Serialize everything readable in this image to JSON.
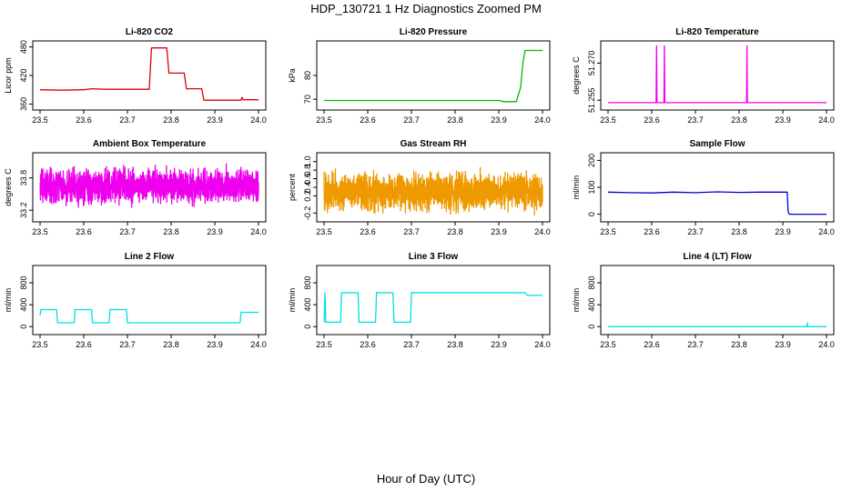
{
  "figure": {
    "title": "HDP_130721  1 Hz Diagnostics Zoomed PM",
    "xlabel": "Hour of Day (UTC)"
  },
  "chart_data": [
    {
      "type": "line",
      "title": "Li-820 CO2",
      "ylabel": "Licor ppm",
      "color": "#dd0000",
      "xlim": [
        23.5,
        24.0
      ],
      "ylim": [
        355,
        485
      ],
      "xticks": [
        23.5,
        23.6,
        23.7,
        23.8,
        23.9,
        24.0
      ],
      "xtick_labels": [
        "23.5",
        "23.6",
        "23.7",
        "23.8",
        "23.9",
        "24.0"
      ],
      "yticks": [
        360,
        420,
        480
      ],
      "ytick_labels": [
        "360",
        "420",
        "480"
      ],
      "series": [
        {
          "x": [
            23.5,
            23.55,
            23.6,
            23.62,
            23.65,
            23.7,
            23.75,
            23.755,
            23.79,
            23.795,
            23.83,
            23.835,
            23.87,
            23.875,
            23.96,
            23.962,
            23.965,
            24.0
          ],
          "y": [
            390,
            389,
            390,
            392,
            391,
            391,
            391,
            478,
            478,
            425,
            425,
            392,
            392,
            368,
            368,
            374,
            369,
            369
          ]
        }
      ]
    },
    {
      "type": "line",
      "title": "Li-820 Pressure",
      "ylabel": "kPa",
      "color": "#00bb00",
      "xlim": [
        23.5,
        24.0
      ],
      "ylim": [
        67,
        93
      ],
      "xticks": [
        23.5,
        23.6,
        23.7,
        23.8,
        23.9,
        24.0
      ],
      "xtick_labels": [
        "23.5",
        "23.6",
        "23.7",
        "23.8",
        "23.9",
        "24.0"
      ],
      "yticks": [
        70,
        80
      ],
      "ytick_labels": [
        "70",
        "80"
      ],
      "series": [
        {
          "x": [
            23.5,
            23.9,
            23.91,
            23.94,
            23.95,
            23.955,
            23.96,
            24.0
          ],
          "y": [
            69.5,
            69.5,
            69.0,
            69.0,
            75,
            85,
            90.5,
            90.5
          ]
        }
      ]
    },
    {
      "type": "line",
      "title": "Li-820 Temperature",
      "ylabel": "degrees C",
      "color": "#ee00ee",
      "xlim": [
        23.5,
        24.0
      ],
      "ylim": [
        51.2525,
        51.2775
      ],
      "xticks": [
        23.5,
        23.6,
        23.7,
        23.8,
        23.9,
        24.0
      ],
      "xtick_labels": [
        "23.5",
        "23.6",
        "23.7",
        "23.8",
        "23.9",
        "24.0"
      ],
      "yticks": [
        51.255,
        51.27
      ],
      "ytick_labels": [
        "51.255",
        "51.270"
      ],
      "series": [
        {
          "x": [
            23.5,
            23.61,
            23.611,
            23.612,
            23.628,
            23.629,
            23.63,
            23.817,
            23.818,
            23.819,
            24.0
          ],
          "y": [
            51.254,
            51.254,
            51.277,
            51.254,
            51.254,
            51.277,
            51.254,
            51.254,
            51.277,
            51.254,
            51.254
          ]
        }
      ]
    },
    {
      "type": "line",
      "title": "Ambient Box Temperature",
      "ylabel": "degrees C",
      "color": "#ee00ee",
      "xlim": [
        23.5,
        24.0
      ],
      "ylim": [
        33.05,
        34.2
      ],
      "xticks": [
        23.5,
        23.6,
        23.7,
        23.8,
        23.9,
        24.0
      ],
      "xtick_labels": [
        "23.5",
        "23.6",
        "23.7",
        "23.8",
        "23.9",
        "24.0"
      ],
      "yticks": [
        33.2,
        33.8
      ],
      "ytick_labels": [
        "33.2",
        "33.8"
      ],
      "noise": {
        "mean": 33.65,
        "min": 33.15,
        "max": 34.15,
        "count": 1800
      }
    },
    {
      "type": "line",
      "title": "Gas Stream RH",
      "ylabel": "percent",
      "color": "#ee9900",
      "xlim": [
        23.5,
        24.0
      ],
      "ylim": [
        -0.32,
        1.12
      ],
      "xticks": [
        23.5,
        23.6,
        23.7,
        23.8,
        23.9,
        24.0
      ],
      "xtick_labels": [
        "23.5",
        "23.6",
        "23.7",
        "23.8",
        "23.9",
        "24.0"
      ],
      "yticks": [
        -0.2,
        0.2,
        0.4,
        0.6,
        0.8,
        1.0
      ],
      "ytick_labels": [
        "-0.2",
        "0.2",
        "0.4",
        "0.6",
        "0.8",
        "1.0"
      ],
      "noise": {
        "mean": 0.3,
        "min": -0.28,
        "max": 1.08,
        "count": 1800
      }
    },
    {
      "type": "line",
      "title": "Sample Flow",
      "ylabel": "ml/min",
      "color": "#0000cc",
      "xlim": [
        23.5,
        24.0
      ],
      "ylim": [
        -15,
        215
      ],
      "xticks": [
        23.5,
        23.6,
        23.7,
        23.8,
        23.9,
        24.0
      ],
      "xtick_labels": [
        "23.5",
        "23.6",
        "23.7",
        "23.8",
        "23.9",
        "24.0"
      ],
      "yticks": [
        0,
        100,
        200
      ],
      "ytick_labels": [
        "0",
        "100",
        "200"
      ],
      "series": [
        {
          "x": [
            23.5,
            23.55,
            23.6,
            23.65,
            23.7,
            23.75,
            23.8,
            23.85,
            23.91,
            23.912,
            23.915,
            24.0
          ],
          "y": [
            82,
            80,
            79,
            82,
            80,
            83,
            81,
            82,
            82,
            10,
            0,
            0
          ]
        }
      ]
    },
    {
      "type": "line",
      "title": "Line 2 Flow",
      "ylabel": "ml/min",
      "color": "#00e0e0",
      "xlim": [
        23.5,
        24.0
      ],
      "ylim": [
        -80,
        1050
      ],
      "xticks": [
        23.5,
        23.6,
        23.7,
        23.8,
        23.9,
        24.0
      ],
      "xtick_labels": [
        "23.5",
        "23.6",
        "23.7",
        "23.8",
        "23.9",
        "24.0"
      ],
      "yticks": [
        0,
        400,
        800
      ],
      "ytick_labels": [
        "0",
        "400",
        "800"
      ],
      "series": [
        {
          "x": [
            23.5,
            23.502,
            23.538,
            23.54,
            23.578,
            23.58,
            23.618,
            23.62,
            23.658,
            23.66,
            23.698,
            23.7,
            23.958,
            23.96,
            24.0
          ],
          "y": [
            200,
            310,
            310,
            70,
            70,
            310,
            310,
            70,
            70,
            310,
            310,
            70,
            70,
            260,
            260
          ]
        }
      ]
    },
    {
      "type": "line",
      "title": "Line 3 Flow",
      "ylabel": "ml/min",
      "color": "#00e0e0",
      "xlim": [
        23.5,
        24.0
      ],
      "ylim": [
        -80,
        1050
      ],
      "xticks": [
        23.5,
        23.6,
        23.7,
        23.8,
        23.9,
        24.0
      ],
      "xtick_labels": [
        "23.5",
        "23.6",
        "23.7",
        "23.8",
        "23.9",
        "24.0"
      ],
      "yticks": [
        0,
        400,
        800
      ],
      "ytick_labels": [
        "0",
        "400",
        "800"
      ],
      "series": [
        {
          "x": [
            23.5,
            23.502,
            23.504,
            23.538,
            23.54,
            23.578,
            23.58,
            23.618,
            23.62,
            23.658,
            23.66,
            23.698,
            23.7,
            23.96,
            23.965,
            24.0
          ],
          "y": [
            80,
            620,
            80,
            80,
            620,
            620,
            80,
            80,
            620,
            620,
            80,
            80,
            620,
            620,
            570,
            570
          ]
        }
      ]
    },
    {
      "type": "line",
      "title": "Line 4 (LT) Flow",
      "ylabel": "ml/min",
      "color": "#00e0e0",
      "xlim": [
        23.5,
        24.0
      ],
      "ylim": [
        -80,
        1050
      ],
      "xticks": [
        23.5,
        23.6,
        23.7,
        23.8,
        23.9,
        24.0
      ],
      "xtick_labels": [
        "23.5",
        "23.6",
        "23.7",
        "23.8",
        "23.9",
        "24.0"
      ],
      "yticks": [
        0,
        400,
        800
      ],
      "ytick_labels": [
        "0",
        "400",
        "800"
      ],
      "series": [
        {
          "x": [
            23.5,
            23.955,
            23.956,
            23.957,
            23.958,
            24.0
          ],
          "y": [
            0,
            0,
            70,
            0,
            0,
            0
          ]
        }
      ]
    }
  ]
}
